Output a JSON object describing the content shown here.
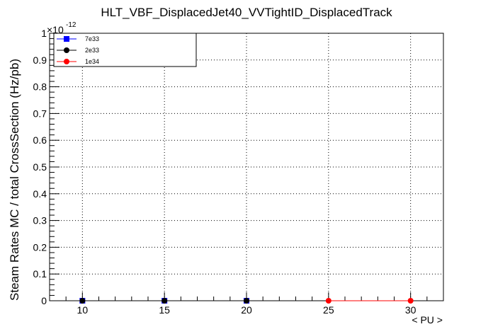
{
  "chart_data": {
    "type": "line",
    "title": "HLT_VBF_DisplacedJet40_VVTightID_DisplacedTrack",
    "xlabel": "< PU >",
    "ylabel": "Steam Rates MC / total CrossSection (Hz/pb)",
    "y_exponent": "×10",
    "y_exponent_power": "-12",
    "xlim": [
      8,
      32
    ],
    "ylim": [
      0,
      1
    ],
    "x_ticks": [
      10,
      15,
      20,
      25,
      30
    ],
    "x_tick_labels": [
      "10",
      "15",
      "20",
      "25",
      "30"
    ],
    "y_ticks": [
      0,
      0.1,
      0.2,
      0.3,
      0.4,
      0.5,
      0.6,
      0.7,
      0.8,
      0.9,
      1
    ],
    "y_tick_labels": [
      "0",
      "0.1",
      "0.2",
      "0.3",
      "0.4",
      "0.5",
      "0.6",
      "0.7",
      "0.8",
      "0.9",
      "1"
    ],
    "grid": true,
    "legend_position": "top-left",
    "series": [
      {
        "name": "7e33",
        "color": "#0000ff",
        "marker": "square",
        "x": [
          10,
          15,
          20
        ],
        "y": [
          0,
          0,
          0
        ]
      },
      {
        "name": "2e33",
        "color": "#000000",
        "marker": "circle",
        "x": [
          10,
          15,
          20
        ],
        "y": [
          0,
          0,
          0
        ]
      },
      {
        "name": "1e34",
        "color": "#ff0000",
        "marker": "circle",
        "x": [
          25,
          30
        ],
        "y": [
          0,
          0
        ]
      }
    ]
  }
}
